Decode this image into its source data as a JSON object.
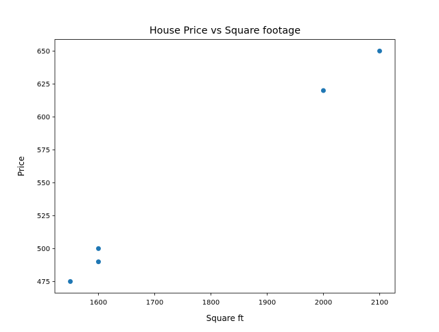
{
  "chart_data": {
    "type": "scatter",
    "title": "House Price vs Square footage",
    "xlabel": "Square ft",
    "ylabel": "Price",
    "xlim": [
      1522.5,
      2127.5
    ],
    "ylim": [
      466.25,
      658.75
    ],
    "xticks": [
      1600,
      1700,
      1800,
      1900,
      2000,
      2100
    ],
    "yticks": [
      475,
      500,
      525,
      550,
      575,
      600,
      625,
      650
    ],
    "grid": false,
    "color": "#1f77b4",
    "points": [
      {
        "x": 1550,
        "y": 475
      },
      {
        "x": 1600,
        "y": 490
      },
      {
        "x": 1600,
        "y": 500
      },
      {
        "x": 2000,
        "y": 620
      },
      {
        "x": 2100,
        "y": 650
      }
    ]
  }
}
